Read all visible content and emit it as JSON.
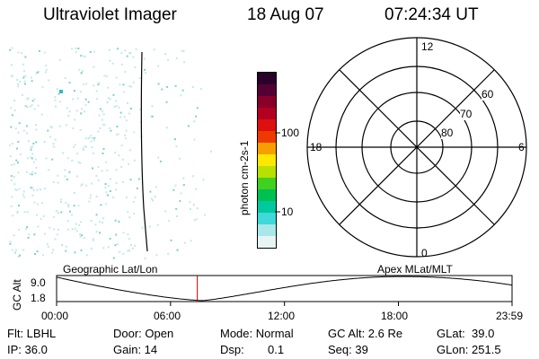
{
  "header": {
    "instrument": "Ultraviolet Imager",
    "date": "18 Aug 07",
    "time": "07:24:34 UT"
  },
  "colorbar": {
    "unit_label": "photon cm-2s-1",
    "tick_100": "100",
    "tick_10": "10",
    "colors": [
      "#2a002a",
      "#550033",
      "#88002a",
      "#b30020",
      "#dd1010",
      "#ee3a00",
      "#f5a000",
      "#ffe800",
      "#b8e000",
      "#40d020",
      "#00c050",
      "#00c8a0",
      "#40d8d8",
      "#a8e8e8",
      "#e8f4f4"
    ]
  },
  "polar_plot": {
    "mlt_labels": {
      "top": "12",
      "left": "18",
      "right": "6",
      "bottom": "0"
    },
    "lat_labels": [
      "60",
      "70",
      "80"
    ]
  },
  "altitude_plot": {
    "left_title": "Geographic Lat/Lon",
    "right_title": "Apex MLat/MLT",
    "axis_label": "GC Alt",
    "y_ticks": [
      "9.0",
      "1.8"
    ],
    "x_ticks": [
      "00:00",
      "06:00",
      "12:00",
      "18:00",
      "23:59"
    ],
    "line_color": "#000000",
    "marker_color": "#c00000",
    "current_marker_hour": 7.41
  },
  "info": {
    "filter": "Flt: LBHL",
    "ip": "IP: 36.0",
    "door": "Door: Open",
    "gain": "Gain: 14",
    "mode": "Mode: Normal",
    "dsp_label": "Dsp:",
    "dsp_value": "0.1",
    "gc_alt": "GC Alt: 2.6 Re",
    "seq": "Seq: 39",
    "glat": "GLat:  39.0",
    "glon": "GLon: 251.5"
  }
}
